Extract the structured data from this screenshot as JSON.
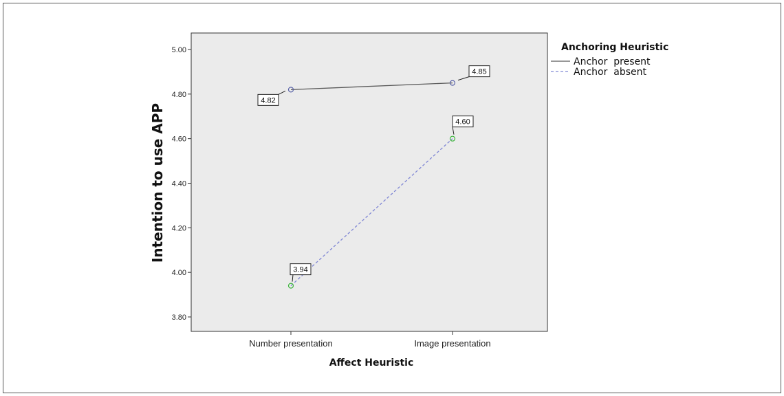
{
  "chart_data": {
    "type": "line",
    "xlabel": "Affect Heuristic",
    "ylabel": "Intention to use APP",
    "categories": [
      "Number presentation",
      "Image presentation"
    ],
    "ylim": [
      3.72,
      5.04
    ],
    "yticks": [
      3.8,
      4.0,
      4.2,
      4.4,
      4.6,
      4.8,
      5.0
    ],
    "ytick_labels": [
      "3.80",
      "4.00",
      "4.20",
      "4.40",
      "4.60",
      "4.80",
      "5.00"
    ],
    "grid": false,
    "legend": {
      "title": "Anchoring Heuristic",
      "placement": "right-top"
    },
    "series": [
      {
        "name": "Anchor  present",
        "values": [
          4.82,
          4.85
        ],
        "labels": [
          "4.82",
          "4.85"
        ],
        "line_color": "#5a5a5a",
        "marker_color": "#5a63a8",
        "dash": false
      },
      {
        "name": "Anchor  absent",
        "values": [
          3.94,
          4.6
        ],
        "labels": [
          "3.94",
          "4.60"
        ],
        "line_color": "#7f86d4",
        "marker_color": "#3cb43c",
        "dash": true
      }
    ]
  },
  "colors": {
    "plot_background": "#ebebeb",
    "frame": "#555555"
  }
}
